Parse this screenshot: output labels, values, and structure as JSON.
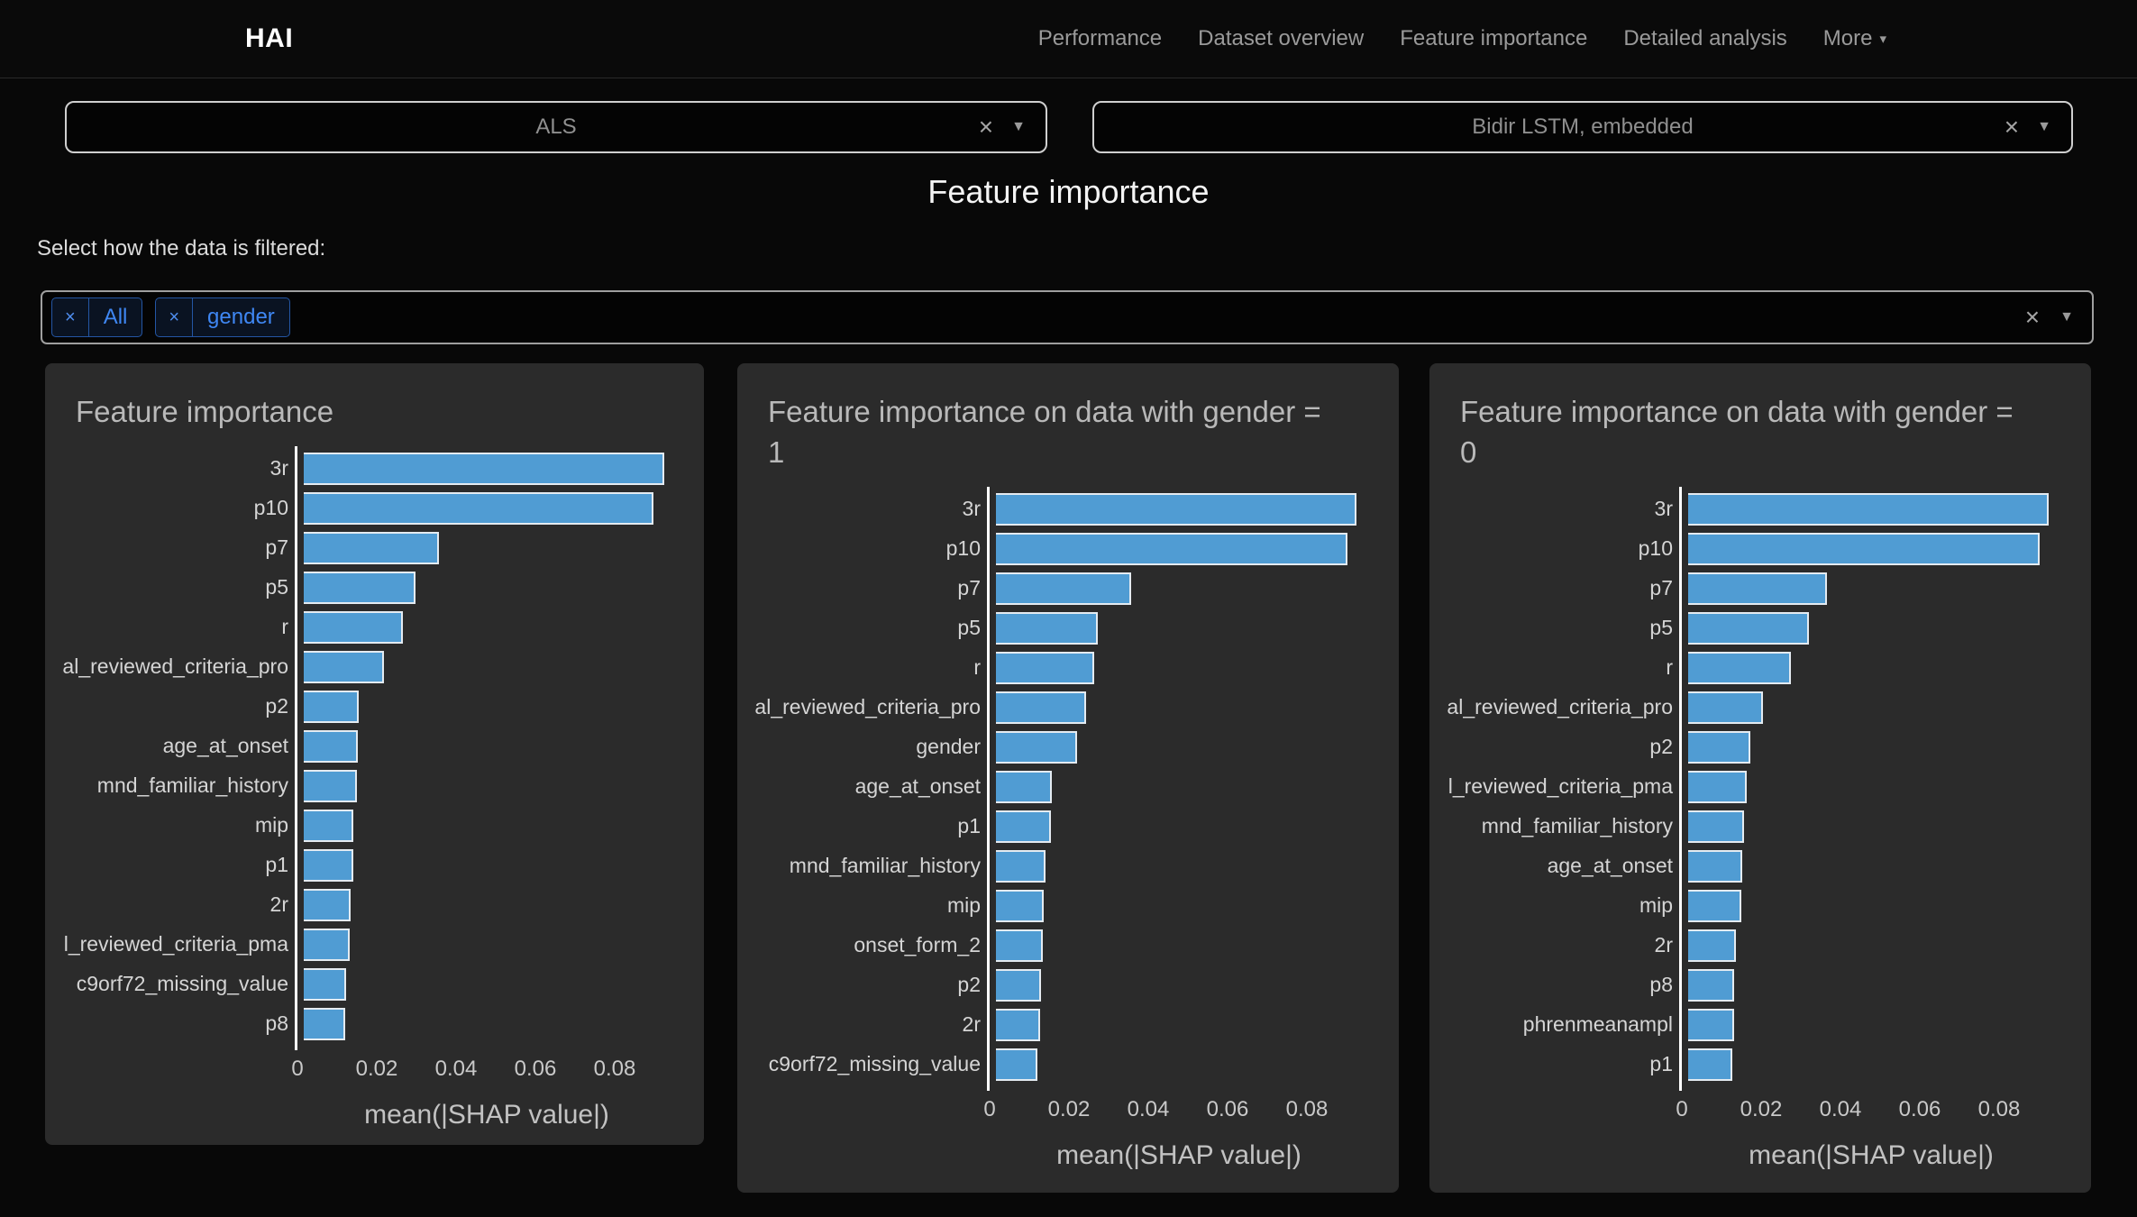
{
  "navbar": {
    "brand": "HAI",
    "links": [
      "Performance",
      "Dataset overview",
      "Feature importance",
      "Detailed analysis"
    ],
    "more_label": "More"
  },
  "selects": {
    "dataset": {
      "value": "ALS"
    },
    "model": {
      "value": "Bidir LSTM, embedded"
    }
  },
  "header": {
    "title": "Feature importance"
  },
  "filter_bar": {
    "label": "Select how the data is filtered:",
    "tags": [
      "All",
      "gender"
    ]
  },
  "icons": {
    "close": "×",
    "caret_down": "▼",
    "nav_caret": "▾"
  },
  "colors": {
    "page_bg": "#080808",
    "card_bg": "#2b2b2b",
    "bar_fill": "#509cd3",
    "bar_edge": "#e4ebf1",
    "tag_blue": "#3f87f3",
    "tag_border": "#2456a4"
  },
  "chart_data": [
    {
      "type": "bar",
      "orientation": "horizontal",
      "title": "Feature importance",
      "categories": [
        "3r",
        "p10",
        "p7",
        "p5",
        "r",
        "al_reviewed_criteria_pro",
        "p2",
        "age_at_onset",
        "mnd_familiar_history",
        "mip",
        "p1",
        "2r",
        "l_reviewed_criteria_pma",
        "c9orf72_missing_value",
        "p8"
      ],
      "values": [
        0.0909,
        0.0882,
        0.0341,
        0.0282,
        0.025,
        0.0202,
        0.0138,
        0.0137,
        0.0134,
        0.0126,
        0.0124,
        0.0119,
        0.0117,
        0.0107,
        0.0104
      ],
      "xlabel": "mean(|SHAP value|)",
      "xticks": [
        0,
        0.02,
        0.04,
        0.06,
        0.08
      ],
      "xticklabels": [
        "0",
        "0.02",
        "0.04",
        "0.06",
        "0.08"
      ],
      "xlim": [
        0,
        0.0955
      ],
      "grid": false
    },
    {
      "type": "bar",
      "orientation": "horizontal",
      "title": "Feature importance on data with gender = 1",
      "categories": [
        "3r",
        "p10",
        "p7",
        "p5",
        "r",
        "al_reviewed_criteria_pro",
        "gender",
        "age_at_onset",
        "p1",
        "mnd_familiar_history",
        "mip",
        "onset_form_2",
        "p2",
        "2r",
        "c9orf72_missing_value"
      ],
      "values": [
        0.0909,
        0.0886,
        0.0341,
        0.0257,
        0.0248,
        0.0227,
        0.0205,
        0.014,
        0.0139,
        0.0126,
        0.0121,
        0.0118,
        0.0114,
        0.0111,
        0.0105
      ],
      "xlabel": "mean(|SHAP value|)",
      "xticks": [
        0,
        0.02,
        0.04,
        0.06,
        0.08
      ],
      "xticklabels": [
        "0",
        "0.02",
        "0.04",
        "0.06",
        "0.08"
      ],
      "xlim": [
        0,
        0.0955
      ],
      "grid": false
    },
    {
      "type": "bar",
      "orientation": "horizontal",
      "title": "Feature importance on data with gender = 0",
      "categories": [
        "3r",
        "p10",
        "p7",
        "p5",
        "r",
        "al_reviewed_criteria_pro",
        "p2",
        "l_reviewed_criteria_pma",
        "mnd_familiar_history",
        "age_at_onset",
        "mip",
        "2r",
        "p8",
        "phrenmeanampl",
        "p1"
      ],
      "values": [
        0.0909,
        0.0886,
        0.035,
        0.0305,
        0.0259,
        0.0189,
        0.0157,
        0.0148,
        0.0141,
        0.0136,
        0.0134,
        0.012,
        0.0116,
        0.0116,
        0.0112
      ],
      "xlabel": "mean(|SHAP value|)",
      "xticks": [
        0,
        0.02,
        0.04,
        0.06,
        0.08
      ],
      "xticklabels": [
        "0",
        "0.02",
        "0.04",
        "0.06",
        "0.08"
      ],
      "xlim": [
        0,
        0.0955
      ],
      "grid": false
    }
  ]
}
